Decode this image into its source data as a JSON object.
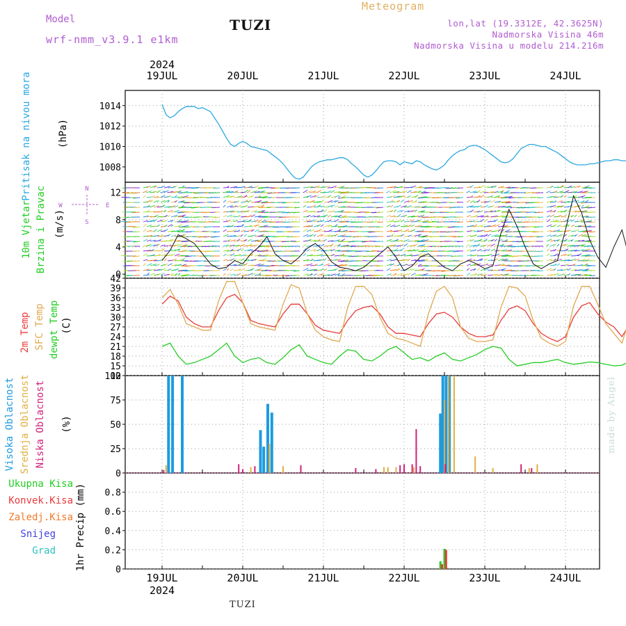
{
  "header": {
    "model_label": "Model",
    "model_name": "wrf-nmm_v3.9.1 e1km",
    "station": "TUZI",
    "title": "Meteogram",
    "lonlat": "lon,lat (19.3312E, 42.3625N)",
    "altitude": "Nadmorska Visina 46m",
    "model_altitude": "Nadmorska Visina u modelu 214.216m"
  },
  "footer": {
    "station": "TUZI",
    "credit": "made by Angel"
  },
  "colors": {
    "pressure": "#2aa8e0",
    "temp": "#e83a3a",
    "sfc": "#e0a850",
    "dew": "#22cc22",
    "high": "#1e9be0",
    "mid": "#e0b040",
    "low": "#d0207a",
    "total": "#22cc22",
    "conv": "#e83a3a",
    "frozen": "#f07a28",
    "snow": "#4040e0",
    "grad": "#30c0c0"
  },
  "chart_data": [
    {
      "type": "line",
      "panel": "pressure",
      "ylabel": [
        "Pritisak na nivou mora",
        "(hPa)"
      ],
      "ylim": [
        1006.5,
        1014.8
      ],
      "yticks": [
        1008,
        1010,
        1012,
        1014
      ],
      "year": "2024",
      "date_labels": [
        "19JUL",
        "20JUL",
        "21JUL",
        "22JUL",
        "23JUL",
        "24JUL"
      ],
      "series": [
        {
          "x": [
            0.0,
            0.05,
            0.1,
            0.15,
            0.2,
            0.25,
            0.3,
            0.35,
            0.4,
            0.45,
            0.5,
            0.55,
            0.6,
            0.65,
            0.7,
            0.75,
            0.8,
            0.85,
            0.9,
            0.95,
            1.0,
            1.05,
            1.1,
            1.15,
            1.2,
            1.25,
            1.3,
            1.35,
            1.4,
            1.45,
            1.5,
            1.55,
            1.6,
            1.65,
            1.7,
            1.75,
            1.8,
            1.85,
            1.9,
            1.95,
            2.0,
            2.05,
            2.1,
            2.15,
            2.2,
            2.25,
            2.3,
            2.35,
            2.4,
            2.45,
            2.5,
            2.55,
            2.6,
            2.65,
            2.7,
            2.75,
            2.8,
            2.85,
            2.9,
            2.95,
            3.0,
            3.05,
            3.1,
            3.15,
            3.2,
            3.25,
            3.3,
            3.35,
            3.4,
            3.45,
            3.5,
            3.55,
            3.6,
            3.65,
            3.7,
            3.75,
            3.8,
            3.85,
            3.9,
            3.95,
            4.0,
            4.05,
            4.1,
            4.15,
            4.2,
            4.25,
            4.3,
            4.35,
            4.4,
            4.45,
            4.5,
            4.55,
            4.6,
            4.65,
            4.7,
            4.75,
            4.8,
            4.85,
            4.9,
            4.95,
            5.0,
            5.05,
            5.1,
            5.15,
            5.2,
            5.25,
            5.3,
            5.35,
            5.4,
            5.45,
            5.5,
            5.55,
            5.6,
            5.65,
            5.7,
            5.75,
            5.8,
            5.85,
            5.9,
            5.95
          ],
          "y": [
            1014.1,
            1013.1,
            1012.8,
            1013.0,
            1013.4,
            1013.7,
            1013.9,
            1013.9,
            1013.9,
            1013.7,
            1013.8,
            1013.6,
            1013.4,
            1012.8,
            1012.2,
            1011.5,
            1010.8,
            1010.2,
            1010.0,
            1010.3,
            1010.5,
            1010.3,
            1010.0,
            1009.9,
            1009.8,
            1009.7,
            1009.6,
            1009.3,
            1009.0,
            1008.7,
            1008.3,
            1007.8,
            1007.3,
            1006.9,
            1006.8,
            1007.0,
            1007.5,
            1008.0,
            1008.3,
            1008.5,
            1008.6,
            1008.7,
            1008.7,
            1008.8,
            1008.9,
            1008.9,
            1008.7,
            1008.3,
            1008.0,
            1007.6,
            1007.2,
            1007.0,
            1007.2,
            1007.6,
            1008.1,
            1008.5,
            1008.6,
            1008.6,
            1008.5,
            1008.2,
            1008.5,
            1008.4,
            1008.3,
            1008.6,
            1008.5,
            1008.2,
            1008.0,
            1007.8,
            1007.7,
            1007.9,
            1008.2,
            1008.7,
            1009.1,
            1009.4,
            1009.6,
            1009.7,
            1010.0,
            1010.1,
            1010.1,
            1009.9,
            1009.7,
            1009.4,
            1009.1,
            1008.8,
            1008.5,
            1008.4,
            1008.5,
            1008.8,
            1009.3,
            1009.8,
            1010.0,
            1010.2,
            1010.2,
            1010.1,
            1010.0,
            1010.0,
            1009.8,
            1009.6,
            1009.4,
            1009.1,
            1008.8,
            1008.5,
            1008.3,
            1008.2,
            1008.2,
            1008.2,
            1008.3,
            1008.3,
            1008.4,
            1008.5,
            1008.6,
            1008.6,
            1008.7,
            1008.7,
            1008.6,
            1008.6,
            1008.6,
            1008.6,
            1008.6,
            1008.6
          ]
        }
      ]
    },
    {
      "type": "vector",
      "panel": "wind",
      "ylabel": [
        "10m Vjetar",
        "Brzina i Pravac",
        "(m/s)"
      ],
      "compass": {
        "n": "N",
        "w": "W",
        "e": "E",
        "s": "S"
      },
      "ylim": [
        -0.6,
        13.5
      ],
      "yticks": [
        0,
        4,
        8,
        12
      ],
      "speed": {
        "x": [
          0.0,
          0.1,
          0.2,
          0.3,
          0.4,
          0.5,
          0.6,
          0.7,
          0.8,
          0.9,
          1.0,
          1.1,
          1.2,
          1.3,
          1.4,
          1.5,
          1.6,
          1.7,
          1.8,
          1.9,
          2.0,
          2.1,
          2.2,
          2.3,
          2.4,
          2.5,
          2.6,
          2.7,
          2.8,
          2.9,
          3.0,
          3.1,
          3.2,
          3.3,
          3.4,
          3.5,
          3.6,
          3.7,
          3.8,
          3.9,
          4.0,
          4.1,
          4.2,
          4.3,
          4.4,
          4.5,
          4.6,
          4.7,
          4.8,
          4.9,
          5.0,
          5.1,
          5.2,
          5.3,
          5.4,
          5.5,
          5.6,
          5.7,
          5.8,
          5.9
        ],
        "y": [
          2.0,
          3.5,
          5.8,
          5.2,
          4.5,
          3.0,
          1.5,
          0.8,
          1.0,
          2.0,
          1.5,
          3.0,
          4.0,
          5.5,
          3.0,
          2.0,
          1.5,
          2.5,
          3.8,
          4.5,
          3.5,
          1.8,
          1.0,
          0.8,
          0.5,
          1.0,
          2.0,
          3.0,
          4.0,
          2.5,
          0.5,
          1.2,
          2.5,
          3.0,
          2.0,
          1.0,
          0.5,
          1.5,
          2.0,
          1.5,
          0.8,
          1.2,
          6.0,
          9.5,
          7.0,
          4.0,
          1.5,
          0.8,
          1.5,
          2.0,
          6.5,
          11.5,
          9.0,
          5.0,
          2.5,
          1.0,
          4.0,
          6.5,
          2.0,
          4.5
        ]
      }
    },
    {
      "type": "line",
      "panel": "temperature",
      "ylabel": [
        "2m Temp",
        "SFC Temp",
        "dewpt Temp",
        "(C)"
      ],
      "ylim": [
        12,
        42
      ],
      "yticks": [
        12,
        15,
        18,
        21,
        24,
        27,
        30,
        33,
        36,
        39,
        42
      ],
      "series": [
        {
          "name": "2m Temp",
          "key": "temp",
          "x": [
            0.0,
            0.1,
            0.2,
            0.3,
            0.4,
            0.5,
            0.6,
            0.7,
            0.8,
            0.9,
            1.0,
            1.1,
            1.2,
            1.3,
            1.4,
            1.5,
            1.6,
            1.7,
            1.8,
            1.9,
            2.0,
            2.1,
            2.2,
            2.3,
            2.4,
            2.5,
            2.6,
            2.7,
            2.8,
            2.9,
            3.0,
            3.1,
            3.2,
            3.3,
            3.4,
            3.5,
            3.6,
            3.7,
            3.8,
            3.9,
            4.0,
            4.1,
            4.2,
            4.3,
            4.4,
            4.5,
            4.6,
            4.7,
            4.8,
            4.9,
            5.0,
            5.1,
            5.2,
            5.3,
            5.4,
            5.5,
            5.6,
            5.7,
            5.8,
            5.9,
            5.95
          ],
          "y": [
            34.0,
            36.5,
            35.0,
            30.0,
            28.0,
            27.0,
            27.0,
            32.0,
            36.0,
            37.0,
            34.5,
            29.0,
            28.0,
            27.5,
            27.0,
            31.0,
            34.0,
            34.0,
            31.0,
            27.5,
            26.0,
            25.5,
            25.0,
            29.0,
            32.0,
            33.0,
            33.5,
            31.0,
            27.0,
            25.0,
            25.0,
            24.5,
            24.0,
            28.0,
            31.0,
            31.5,
            30.0,
            27.0,
            25.0,
            24.0,
            24.0,
            24.5,
            29.0,
            32.5,
            33.5,
            32.0,
            28.0,
            25.0,
            23.5,
            22.5,
            24.0,
            30.0,
            33.5,
            34.5,
            31.0,
            28.5,
            27.0,
            24.0,
            28.0,
            31.0,
            31.5
          ]
        },
        {
          "name": "SFC Temp",
          "key": "sfc",
          "x": [
            0.0,
            0.1,
            0.2,
            0.3,
            0.4,
            0.5,
            0.6,
            0.7,
            0.8,
            0.9,
            1.0,
            1.1,
            1.2,
            1.3,
            1.4,
            1.5,
            1.6,
            1.7,
            1.8,
            1.9,
            2.0,
            2.1,
            2.2,
            2.3,
            2.4,
            2.5,
            2.6,
            2.7,
            2.8,
            2.9,
            3.0,
            3.1,
            3.2,
            3.3,
            3.4,
            3.5,
            3.6,
            3.7,
            3.8,
            3.9,
            4.0,
            4.1,
            4.2,
            4.3,
            4.4,
            4.5,
            4.6,
            4.7,
            4.8,
            4.9,
            5.0,
            5.1,
            5.2,
            5.3,
            5.4,
            5.5,
            5.6,
            5.7,
            5.8,
            5.9,
            5.95
          ],
          "y": [
            36.0,
            38.5,
            34.0,
            28.0,
            27.0,
            26.0,
            26.0,
            35.0,
            41.0,
            41.0,
            34.5,
            28.0,
            27.0,
            26.5,
            26.0,
            34.0,
            40.0,
            39.0,
            31.0,
            26.0,
            24.0,
            23.0,
            22.5,
            33.0,
            39.5,
            39.5,
            37.0,
            30.0,
            25.0,
            23.5,
            23.0,
            22.0,
            21.0,
            31.0,
            38.0,
            39.5,
            36.0,
            27.0,
            23.5,
            22.5,
            22.5,
            23.0,
            33.0,
            39.5,
            39.0,
            36.5,
            29.0,
            23.5,
            22.0,
            21.0,
            22.5,
            33.5,
            39.5,
            39.5,
            34.0,
            28.0,
            25.0,
            22.0,
            30.0,
            38.0,
            35.0
          ]
        },
        {
          "name": "dewpt Temp",
          "key": "dew",
          "x": [
            0.0,
            0.1,
            0.2,
            0.3,
            0.4,
            0.5,
            0.6,
            0.7,
            0.8,
            0.9,
            1.0,
            1.1,
            1.2,
            1.3,
            1.4,
            1.5,
            1.6,
            1.7,
            1.8,
            1.9,
            2.0,
            2.1,
            2.2,
            2.3,
            2.4,
            2.5,
            2.6,
            2.7,
            2.8,
            2.9,
            3.0,
            3.1,
            3.2,
            3.3,
            3.4,
            3.5,
            3.6,
            3.7,
            3.8,
            3.9,
            4.0,
            4.1,
            4.2,
            4.3,
            4.4,
            4.5,
            4.6,
            4.7,
            4.8,
            4.9,
            5.0,
            5.1,
            5.2,
            5.3,
            5.4,
            5.5,
            5.6,
            5.7,
            5.8,
            5.9,
            5.95
          ],
          "y": [
            21.0,
            22.0,
            18.0,
            15.5,
            16.0,
            17.0,
            18.0,
            20.0,
            22.0,
            18.0,
            16.0,
            17.0,
            17.5,
            16.0,
            15.5,
            17.5,
            20.0,
            21.5,
            18.0,
            17.0,
            16.0,
            15.5,
            18.0,
            20.0,
            19.5,
            17.0,
            16.5,
            18.0,
            20.0,
            21.0,
            19.0,
            17.0,
            17.5,
            16.5,
            18.0,
            19.0,
            17.0,
            16.5,
            17.5,
            18.5,
            20.0,
            21.0,
            20.5,
            17.0,
            15.0,
            15.5,
            16.0,
            16.0,
            16.5,
            17.0,
            16.0,
            15.5,
            15.8,
            16.2,
            16.0,
            15.5,
            15.0,
            15.2,
            16.5,
            18.0,
            20.0
          ]
        }
      ]
    },
    {
      "type": "bar",
      "panel": "clouds",
      "ylabel": [
        "Visoka Oblacnost",
        "Srednja Oblacnost",
        "Niska Oblacnost",
        "(%)"
      ],
      "ylim": [
        0,
        100
      ],
      "yticks": [
        0,
        25,
        50,
        75,
        100
      ],
      "series": [
        {
          "name": "Visoka Oblacnost",
          "key": "high",
          "x": [
            0.08,
            0.13,
            0.25,
            1.22,
            1.26,
            1.31,
            1.36,
            3.45,
            3.48,
            3.52,
            3.56
          ],
          "y": [
            100,
            100,
            100,
            44,
            27,
            71,
            62,
            61,
            100,
            100,
            100
          ]
        },
        {
          "name": "Srednja Oblacnost",
          "key": "mid",
          "x": [
            0.05,
            1.1,
            1.33,
            1.5,
            2.75,
            2.8,
            2.9,
            3.12,
            3.5,
            3.55,
            3.62,
            3.88,
            4.1,
            4.55,
            4.65
          ],
          "y": [
            8,
            6,
            30,
            7,
            6,
            6,
            6,
            6,
            75,
            100,
            100,
            17,
            5,
            5,
            9
          ]
        },
        {
          "name": "Niska Oblacnost",
          "key": "low",
          "x": [
            0.02,
            0.95,
            1.0,
            1.15,
            1.72,
            2.4,
            2.65,
            2.95,
            3.0,
            3.1,
            3.15,
            3.2,
            3.51,
            4.45,
            4.58
          ],
          "y": [
            3,
            9,
            4,
            7,
            8,
            5,
            4,
            8,
            9,
            9,
            45,
            7,
            9,
            9,
            5
          ]
        }
      ]
    },
    {
      "type": "bar",
      "panel": "precip",
      "ylabel": [
        "1hr Precip (mm)"
      ],
      "ylim": [
        0,
        1.0
      ],
      "yticks": [
        0,
        0.2,
        0.4,
        0.6,
        0.8
      ],
      "legend": [
        "Ukupna Kisa",
        "Konvek.Kisa",
        "Zaledj.Kisa",
        "Snijeg",
        "Grad"
      ],
      "series": [
        {
          "name": "Ukupna Kisa",
          "key": "total",
          "x": [
            3.45,
            3.5
          ],
          "y": [
            0.08,
            0.21
          ]
        },
        {
          "name": "Konvek.Kisa",
          "key": "conv",
          "x": [
            3.47,
            3.52
          ],
          "y": [
            0.05,
            0.2
          ]
        }
      ]
    }
  ]
}
